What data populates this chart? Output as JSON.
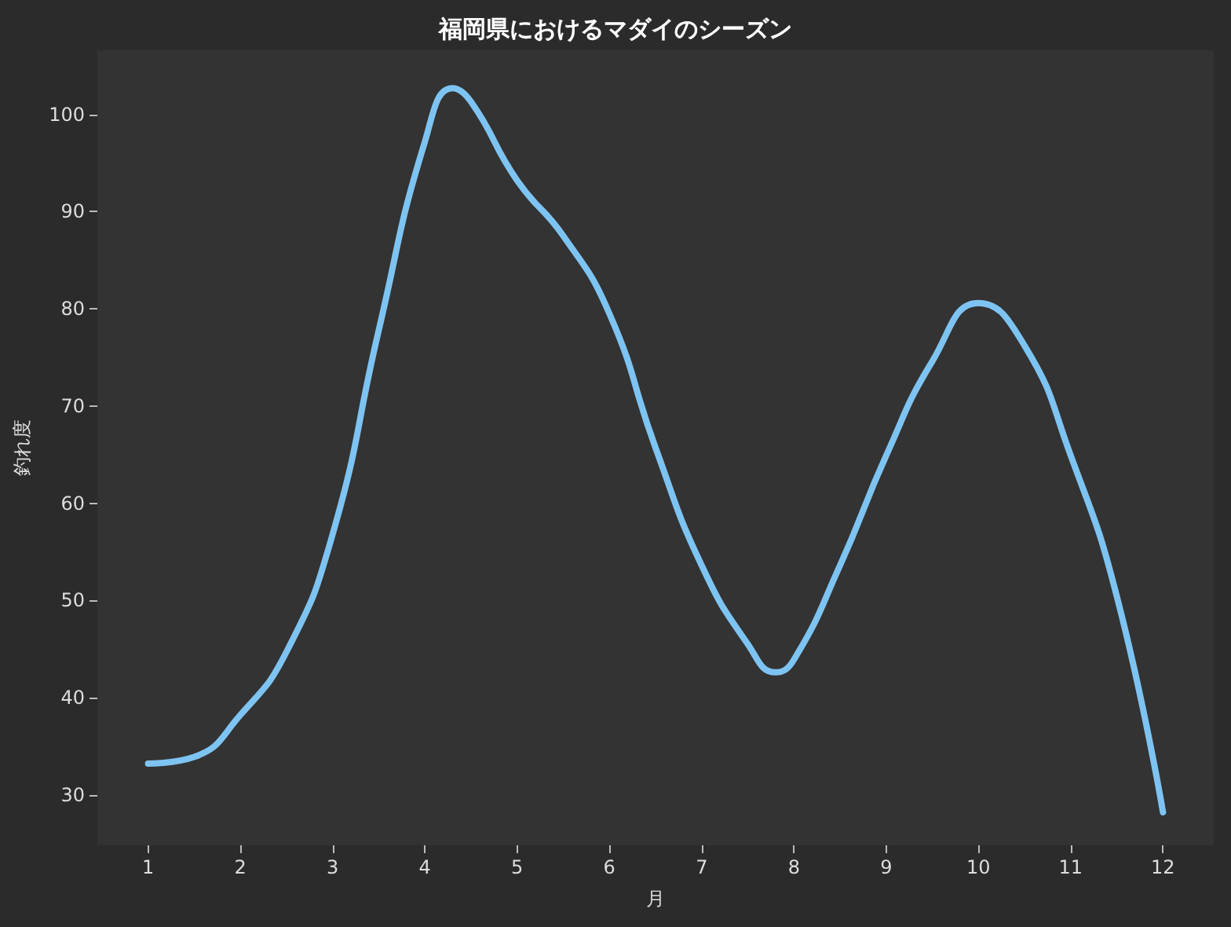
{
  "chart_data": {
    "type": "line",
    "title": "福岡県におけるマダイのシーズン",
    "xlabel": "月",
    "ylabel": "釣れ度",
    "x": [
      1,
      1.5,
      2,
      2.5,
      3,
      3.5,
      4,
      4.3,
      4.5,
      5,
      5.5,
      6,
      6.5,
      7,
      7.5,
      7.8,
      8,
      8.5,
      9,
      9.5,
      10,
      10.5,
      11,
      11.5,
      12
    ],
    "series": [
      {
        "color": "#7ec4f2",
        "values": [
          33.2,
          33.9,
          38.2,
          44.7,
          56.8,
          77.8,
          97.2,
          102.7,
          101.3,
          93.2,
          87.5,
          79.5,
          65.7,
          53.6,
          45.5,
          42.6,
          43.9,
          53.6,
          64.9,
          74.6,
          80.6,
          76.2,
          64.9,
          50.4,
          28.2
        ]
      }
    ],
    "xlim": [
      0.45,
      12.55
    ],
    "ylim": [
      24.8,
      106.6
    ],
    "xticks": [
      1,
      2,
      3,
      4,
      5,
      6,
      7,
      8,
      9,
      10,
      11,
      12
    ],
    "yticks": [
      30,
      40,
      50,
      60,
      70,
      80,
      90,
      100
    ]
  }
}
